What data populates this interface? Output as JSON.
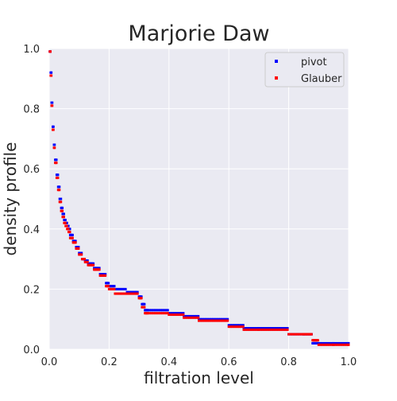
{
  "chart_data": {
    "type": "scatter",
    "title": "Marjorie Daw",
    "xlabel": "filtration level",
    "ylabel": "density profile",
    "xlim": [
      0.0,
      1.0
    ],
    "ylim": [
      0.0,
      1.0
    ],
    "x_ticks": [
      0.0,
      0.2,
      0.4,
      0.6,
      0.8,
      1.0
    ],
    "y_ticks": [
      0.0,
      0.2,
      0.4,
      0.6,
      0.8,
      1.0
    ],
    "x_tick_labels": [
      "0.0",
      "0.2",
      "0.4",
      "0.6",
      "0.8",
      "1.0"
    ],
    "y_tick_labels": [
      "0.0",
      "0.2",
      "0.4",
      "0.6",
      "0.8",
      "1.0"
    ],
    "grid": true,
    "legend_position": "top-right",
    "background_color": "#eaeaf2",
    "grid_color": "#ffffff",
    "series": [
      {
        "name": "pivot",
        "color": "#0000ff",
        "x": [
          0.002,
          0.005,
          0.008,
          0.012,
          0.016,
          0.02,
          0.025,
          0.03,
          0.035,
          0.04,
          0.045,
          0.05,
          0.055,
          0.06,
          0.065,
          0.07,
          0.08,
          0.09,
          0.1,
          0.11,
          0.12,
          0.13,
          0.15,
          0.17,
          0.19,
          0.2,
          0.22,
          0.26,
          0.3,
          0.31,
          0.32,
          0.33,
          0.4,
          0.45,
          0.5,
          0.6,
          0.65,
          0.7,
          0.8,
          0.85,
          0.88,
          0.9,
          0.95,
          1.0
        ],
        "y": [
          0.99,
          0.92,
          0.82,
          0.74,
          0.68,
          0.63,
          0.58,
          0.54,
          0.5,
          0.47,
          0.45,
          0.43,
          0.42,
          0.41,
          0.4,
          0.38,
          0.36,
          0.34,
          0.32,
          0.3,
          0.295,
          0.285,
          0.27,
          0.25,
          0.22,
          0.21,
          0.2,
          0.19,
          0.175,
          0.15,
          0.13,
          0.13,
          0.12,
          0.11,
          0.1,
          0.08,
          0.07,
          0.07,
          0.05,
          0.05,
          0.02,
          0.02,
          0.02,
          0.02
        ]
      },
      {
        "name": "Glauber",
        "color": "#ff0000",
        "x": [
          0.002,
          0.005,
          0.008,
          0.012,
          0.016,
          0.02,
          0.025,
          0.03,
          0.035,
          0.04,
          0.045,
          0.05,
          0.055,
          0.06,
          0.065,
          0.07,
          0.08,
          0.09,
          0.1,
          0.11,
          0.12,
          0.13,
          0.15,
          0.17,
          0.19,
          0.2,
          0.22,
          0.26,
          0.3,
          0.31,
          0.32,
          0.33,
          0.4,
          0.45,
          0.5,
          0.6,
          0.65,
          0.7,
          0.8,
          0.85,
          0.88,
          0.9,
          0.95,
          1.0
        ],
        "y": [
          0.99,
          0.91,
          0.81,
          0.73,
          0.67,
          0.62,
          0.57,
          0.53,
          0.49,
          0.46,
          0.44,
          0.42,
          0.41,
          0.4,
          0.39,
          0.37,
          0.355,
          0.335,
          0.315,
          0.3,
          0.29,
          0.28,
          0.265,
          0.245,
          0.21,
          0.2,
          0.185,
          0.185,
          0.17,
          0.14,
          0.12,
          0.12,
          0.115,
          0.105,
          0.095,
          0.075,
          0.065,
          0.065,
          0.05,
          0.05,
          0.03,
          0.015,
          0.015,
          0.015
        ]
      }
    ]
  }
}
